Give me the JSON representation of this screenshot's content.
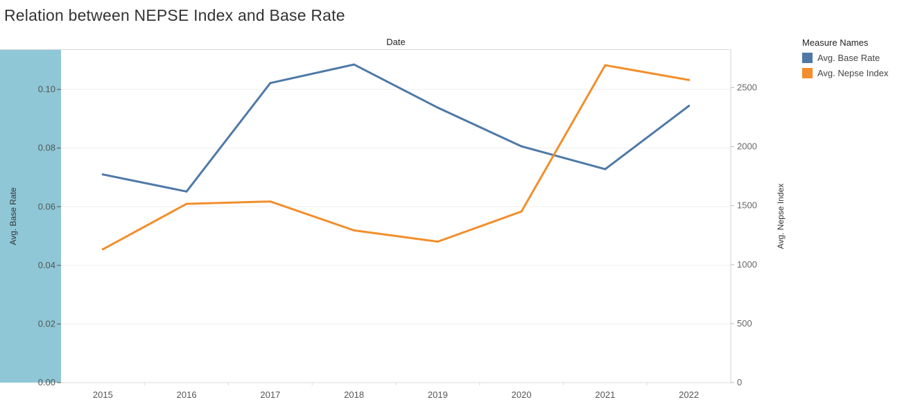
{
  "title": "Relation between NEPSE Index and Base Rate",
  "chart_data": {
    "type": "line",
    "column_header": "Date",
    "x": [
      "2015",
      "2016",
      "2017",
      "2018",
      "2019",
      "2020",
      "2021",
      "2022"
    ],
    "y_left": {
      "label": "Avg. Base Rate",
      "ticks": [
        "0.00",
        "0.02",
        "0.04",
        "0.06",
        "0.08",
        "0.10"
      ],
      "ylim": [
        0,
        0.1135
      ]
    },
    "y_right": {
      "label": "Avg. Nepse Index",
      "ticks": [
        "0",
        "500",
        "1000",
        "1500",
        "2000",
        "2500"
      ],
      "ylim": [
        0,
        2820
      ]
    },
    "series": [
      {
        "name": "Avg. Base Rate",
        "axis": "left",
        "color": "#4e79a7",
        "values": [
          0.071,
          0.0652,
          0.1022,
          0.1085,
          0.0938,
          0.0806,
          0.0728,
          0.0944
        ]
      },
      {
        "name": "Avg. Nepse Index",
        "axis": "right",
        "color": "#f28e2b",
        "values": [
          1130,
          1515,
          1535,
          1290,
          1195,
          1450,
          2690,
          2565
        ]
      }
    ],
    "legend": {
      "title": "Measure Names",
      "position": "top-right"
    },
    "grid": true
  }
}
